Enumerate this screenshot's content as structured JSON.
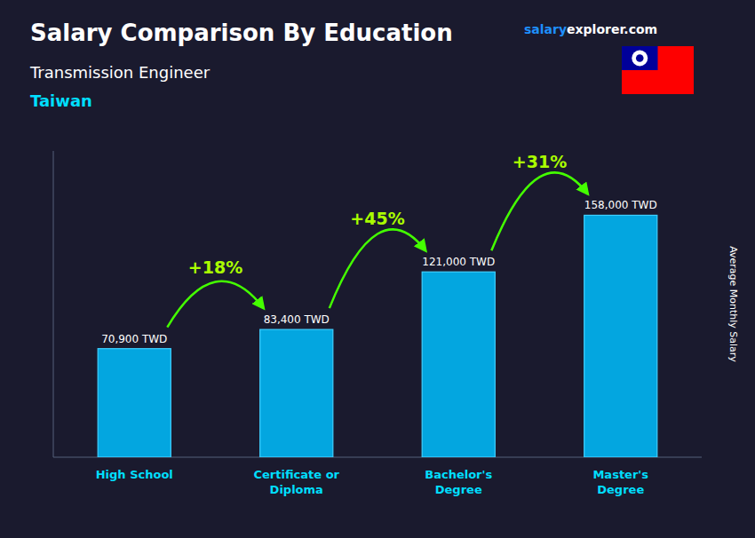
{
  "chart_data": {
    "type": "bar",
    "title": "Salary Comparison By Education",
    "subtitle": [
      "Transmission Engineer",
      "Taiwan"
    ],
    "source": [
      "salary",
      "explorer.com"
    ],
    "ylabel": "Average Monthly Salary",
    "categories": [
      "High School",
      "Certificate or\nDiploma",
      "Bachelor's\nDegree",
      "Master's\nDegree"
    ],
    "values": [
      70900,
      83400,
      121000,
      158000
    ],
    "value_labels": [
      "70,900 TWD",
      "83,400 TWD",
      "121,000 TWD",
      "158,000 TWD"
    ],
    "annotations": [
      "+18%",
      "+45%",
      "+31%"
    ],
    "color": "#00BFFF",
    "ylim": [
      0,
      200000
    ],
    "grid": false,
    "data_labels": true,
    "tick_labels": "x"
  }
}
